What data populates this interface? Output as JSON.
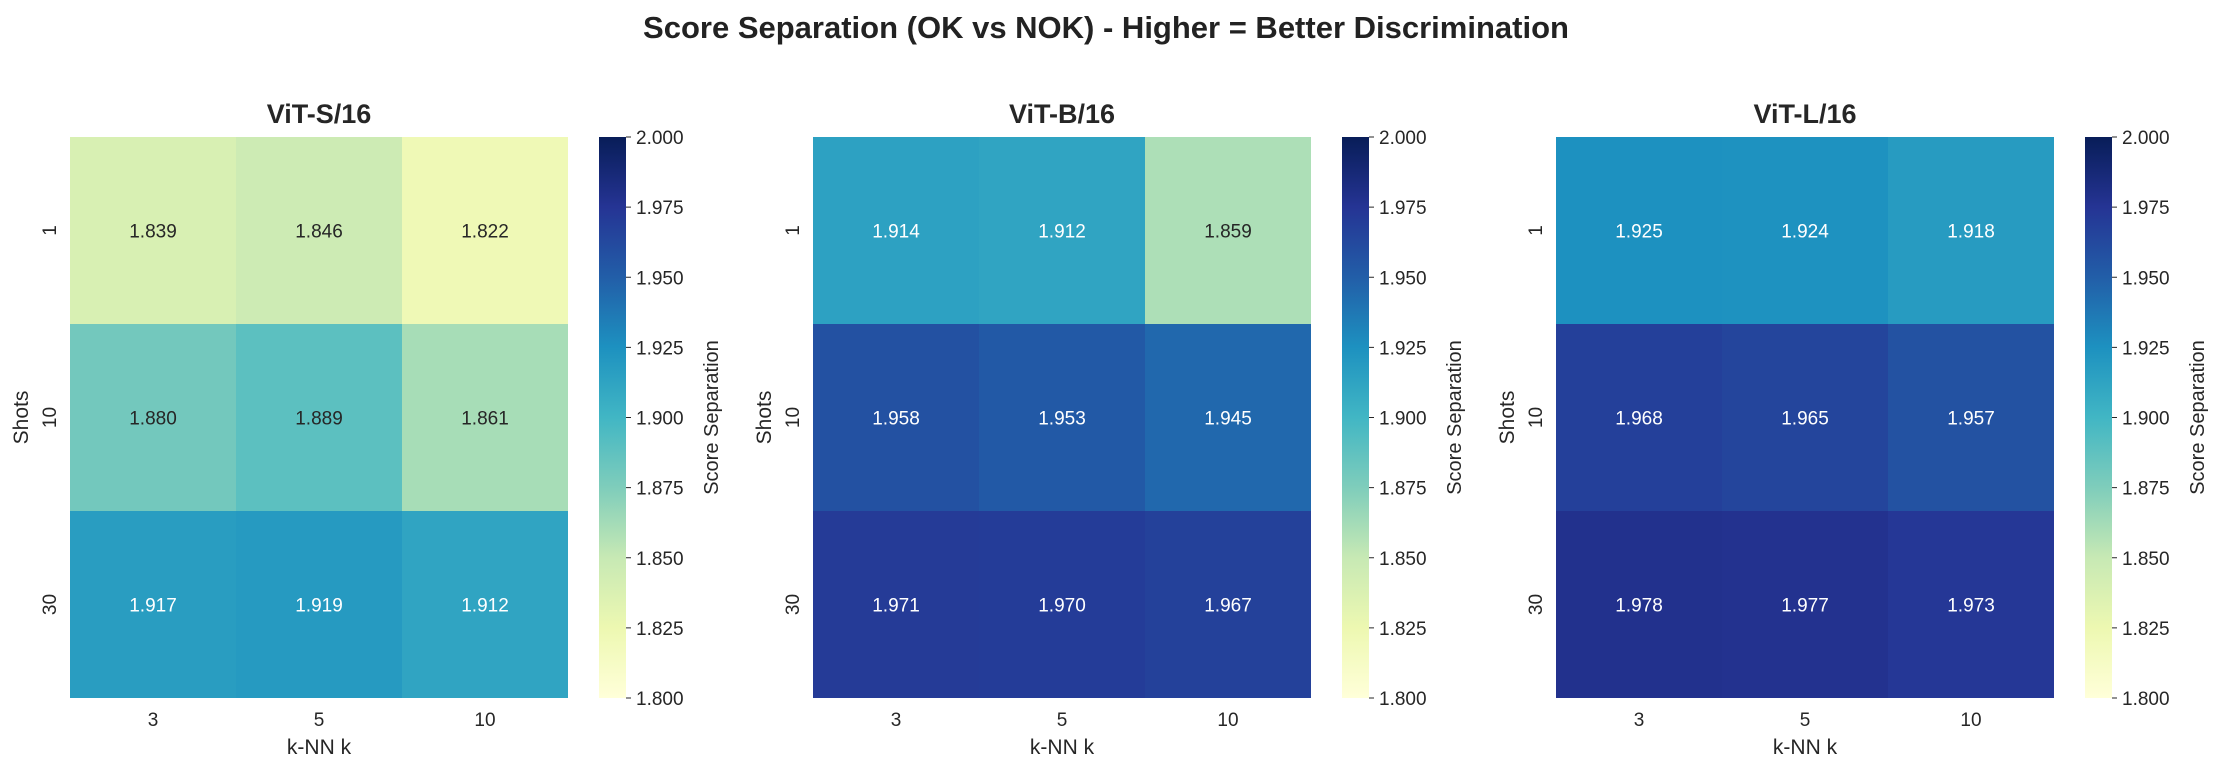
{
  "figure_title": "Score Separation (OK vs NOK) - Higher = Better Discrimination",
  "colormap": [
    "#ffffd9",
    "#edf8b1",
    "#c7e9b4",
    "#7fcdbb",
    "#41b6c4",
    "#1d91c0",
    "#225ea8",
    "#253494",
    "#081d58"
  ],
  "chart_data": [
    {
      "type": "heatmap",
      "title": "ViT-S/16",
      "xlabel": "k-NN k",
      "ylabel": "Shots",
      "x_categories": [
        "3",
        "5",
        "10"
      ],
      "y_categories": [
        "1",
        "10",
        "30"
      ],
      "values": [
        [
          1.839,
          1.846,
          1.822
        ],
        [
          1.88,
          1.889,
          1.861
        ],
        [
          1.917,
          1.919,
          1.912
        ]
      ],
      "value_labels": [
        [
          "1.839",
          "1.846",
          "1.822"
        ],
        [
          "1.880",
          "1.889",
          "1.861"
        ],
        [
          "1.917",
          "1.919",
          "1.912"
        ]
      ],
      "colorbar": {
        "label": "Score Separation",
        "range": [
          1.8,
          2.0
        ],
        "ticks": [
          "1.800",
          "1.825",
          "1.850",
          "1.875",
          "1.900",
          "1.925",
          "1.950",
          "1.975",
          "2.000"
        ]
      }
    },
    {
      "type": "heatmap",
      "title": "ViT-B/16",
      "xlabel": "k-NN k",
      "ylabel": "Shots",
      "x_categories": [
        "3",
        "5",
        "10"
      ],
      "y_categories": [
        "1",
        "10",
        "30"
      ],
      "values": [
        [
          1.914,
          1.912,
          1.859
        ],
        [
          1.958,
          1.953,
          1.945
        ],
        [
          1.971,
          1.97,
          1.967
        ]
      ],
      "value_labels": [
        [
          "1.914",
          "1.912",
          "1.859"
        ],
        [
          "1.958",
          "1.953",
          "1.945"
        ],
        [
          "1.971",
          "1.970",
          "1.967"
        ]
      ],
      "colorbar": {
        "label": "Score Separation",
        "range": [
          1.8,
          2.0
        ],
        "ticks": [
          "1.800",
          "1.825",
          "1.850",
          "1.875",
          "1.900",
          "1.925",
          "1.950",
          "1.975",
          "2.000"
        ]
      }
    },
    {
      "type": "heatmap",
      "title": "ViT-L/16",
      "xlabel": "k-NN k",
      "ylabel": "Shots",
      "x_categories": [
        "3",
        "5",
        "10"
      ],
      "y_categories": [
        "1",
        "10",
        "30"
      ],
      "values": [
        [
          1.925,
          1.924,
          1.918
        ],
        [
          1.968,
          1.965,
          1.957
        ],
        [
          1.978,
          1.977,
          1.973
        ]
      ],
      "value_labels": [
        [
          "1.925",
          "1.924",
          "1.918"
        ],
        [
          "1.968",
          "1.965",
          "1.957"
        ],
        [
          "1.978",
          "1.977",
          "1.973"
        ]
      ],
      "colorbar": {
        "label": "Score Separation",
        "range": [
          1.8,
          2.0
        ],
        "ticks": [
          "1.800",
          "1.825",
          "1.850",
          "1.875",
          "1.900",
          "1.925",
          "1.950",
          "1.975",
          "2.000"
        ]
      }
    }
  ]
}
